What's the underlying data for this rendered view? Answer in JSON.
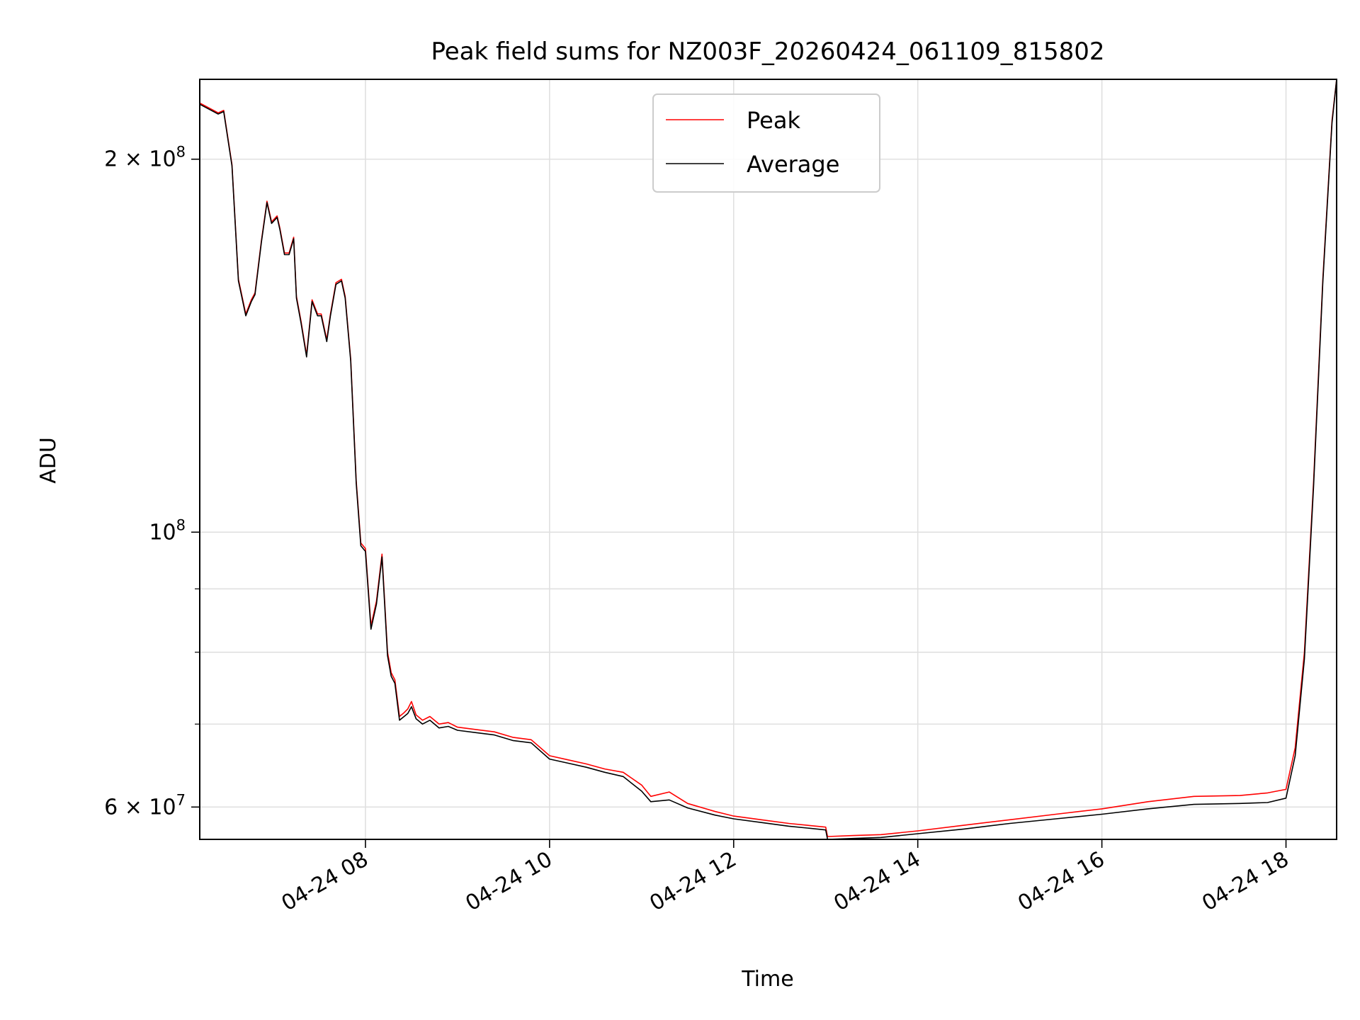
{
  "chart_data": {
    "type": "line",
    "title": "Peak field sums for NZ003F_20260424_061109_815802",
    "xlabel": "Time",
    "ylabel": "ADU",
    "yscale": "log",
    "xlim": [
      6.2,
      18.55
    ],
    "ylim": [
      56500000,
      232000000
    ],
    "grid": true,
    "legend_position": "top-center",
    "x_ticks": [
      {
        "value": 8,
        "label": "04-24 08"
      },
      {
        "value": 10,
        "label": "04-24 10"
      },
      {
        "value": 12,
        "label": "04-24 12"
      },
      {
        "value": 14,
        "label": "04-24 14"
      },
      {
        "value": 16,
        "label": "04-24 16"
      },
      {
        "value": 18,
        "label": "04-24 18"
      }
    ],
    "y_major_ticks": [
      {
        "value": 200000000,
        "label": "2 × 10",
        "exp": "8"
      },
      {
        "value": 100000000,
        "label": "10",
        "exp": "8"
      },
      {
        "value": 60000000,
        "label": "6 × 10",
        "exp": "7"
      }
    ],
    "y_minor_grid": [
      70000000,
      80000000,
      90000000
    ],
    "series": [
      {
        "name": "Peak",
        "color": "#ff0000",
        "x": [
          6.2,
          6.35,
          6.4,
          6.46,
          6.55,
          6.62,
          6.7,
          6.76,
          6.8,
          6.87,
          6.93,
          6.98,
          7.04,
          7.07,
          7.12,
          7.17,
          7.22,
          7.25,
          7.3,
          7.36,
          7.42,
          7.48,
          7.52,
          7.58,
          7.62,
          7.68,
          7.74,
          7.78,
          7.84,
          7.9,
          7.95,
          8.0,
          8.06,
          8.12,
          8.18,
          8.24,
          8.28,
          8.32,
          8.37,
          8.42,
          8.46,
          8.5,
          8.55,
          8.62,
          8.7,
          8.8,
          8.9,
          9.0,
          9.2,
          9.4,
          9.6,
          9.8,
          10.0,
          10.2,
          10.4,
          10.6,
          10.8,
          11.0,
          11.1,
          11.3,
          11.5,
          11.8,
          12.0,
          12.3,
          12.6,
          12.8,
          13.0,
          13.02,
          13.3,
          13.6,
          14.0,
          14.5,
          15.0,
          15.5,
          16.0,
          16.5,
          17.0,
          17.5,
          17.8,
          18.0,
          18.1,
          18.2,
          18.3,
          18.4,
          18.5,
          18.55
        ],
        "y": [
          222000000,
          219000000,
          218000000,
          219000000,
          198000000,
          160000000,
          150000000,
          154000000,
          156000000,
          172000000,
          185000000,
          178000000,
          180000000,
          176000000,
          168000000,
          168000000,
          173000000,
          155000000,
          148000000,
          139000000,
          154000000,
          150000000,
          150000000,
          143000000,
          150000000,
          159000000,
          160000000,
          155000000,
          138000000,
          110000000,
          98000000,
          97000000,
          84000000,
          88000000,
          96000000,
          80000000,
          77000000,
          76000000,
          71000000,
          71500000,
          72000000,
          73000000,
          71200000,
          70500000,
          71000000,
          70000000,
          70200000,
          69600000,
          69300000,
          69000000,
          68300000,
          68000000,
          66000000,
          65500000,
          65000000,
          64400000,
          64000000,
          62500000,
          61200000,
          61700000,
          60400000,
          59500000,
          59000000,
          58600000,
          58200000,
          58000000,
          57800000,
          56800000,
          56900000,
          57000000,
          57400000,
          58000000,
          58600000,
          59200000,
          59800000,
          60600000,
          61200000,
          61300000,
          61600000,
          62000000,
          67000000,
          80000000,
          110000000,
          160000000,
          215000000,
          232000000
        ]
      },
      {
        "name": "Average",
        "color": "#000000",
        "x": [
          6.2,
          6.35,
          6.4,
          6.46,
          6.55,
          6.62,
          6.7,
          6.76,
          6.8,
          6.87,
          6.93,
          6.98,
          7.04,
          7.07,
          7.12,
          7.17,
          7.22,
          7.25,
          7.3,
          7.36,
          7.42,
          7.48,
          7.52,
          7.58,
          7.62,
          7.68,
          7.74,
          7.78,
          7.84,
          7.9,
          7.95,
          8.0,
          8.06,
          8.12,
          8.18,
          8.24,
          8.28,
          8.32,
          8.37,
          8.42,
          8.46,
          8.5,
          8.55,
          8.62,
          8.7,
          8.8,
          8.9,
          9.0,
          9.2,
          9.4,
          9.6,
          9.8,
          10.0,
          10.2,
          10.4,
          10.6,
          10.8,
          11.0,
          11.1,
          11.3,
          11.5,
          11.8,
          12.0,
          12.3,
          12.6,
          12.8,
          13.0,
          13.02,
          13.3,
          13.6,
          14.0,
          14.5,
          15.0,
          15.5,
          16.0,
          16.5,
          17.0,
          17.5,
          17.8,
          18.0,
          18.1,
          18.2,
          18.3,
          18.4,
          18.5,
          18.55
        ],
        "y": [
          221500000,
          218500000,
          217500000,
          218500000,
          197500000,
          159500000,
          149500000,
          153500000,
          155500000,
          171500000,
          184500000,
          177500000,
          179500000,
          175500000,
          167500000,
          167500000,
          172500000,
          154500000,
          147500000,
          138500000,
          153500000,
          149500000,
          149500000,
          142500000,
          149500000,
          158500000,
          159500000,
          154500000,
          137500000,
          109500000,
          97500000,
          96500000,
          83500000,
          87500000,
          95500000,
          79500000,
          76500000,
          75500000,
          70500000,
          71000000,
          71400000,
          72300000,
          70700000,
          70000000,
          70500000,
          69500000,
          69700000,
          69200000,
          68900000,
          68600000,
          67900000,
          67600000,
          65600000,
          65100000,
          64600000,
          64000000,
          63500000,
          61800000,
          60600000,
          60800000,
          59900000,
          59100000,
          58700000,
          58300000,
          57900000,
          57700000,
          57500000,
          56500000,
          56600000,
          56700000,
          57100000,
          57600000,
          58200000,
          58700000,
          59200000,
          59800000,
          60300000,
          60400000,
          60500000,
          61000000,
          66000000,
          79000000,
          109000000,
          159000000,
          214000000,
          232000000
        ]
      }
    ]
  }
}
